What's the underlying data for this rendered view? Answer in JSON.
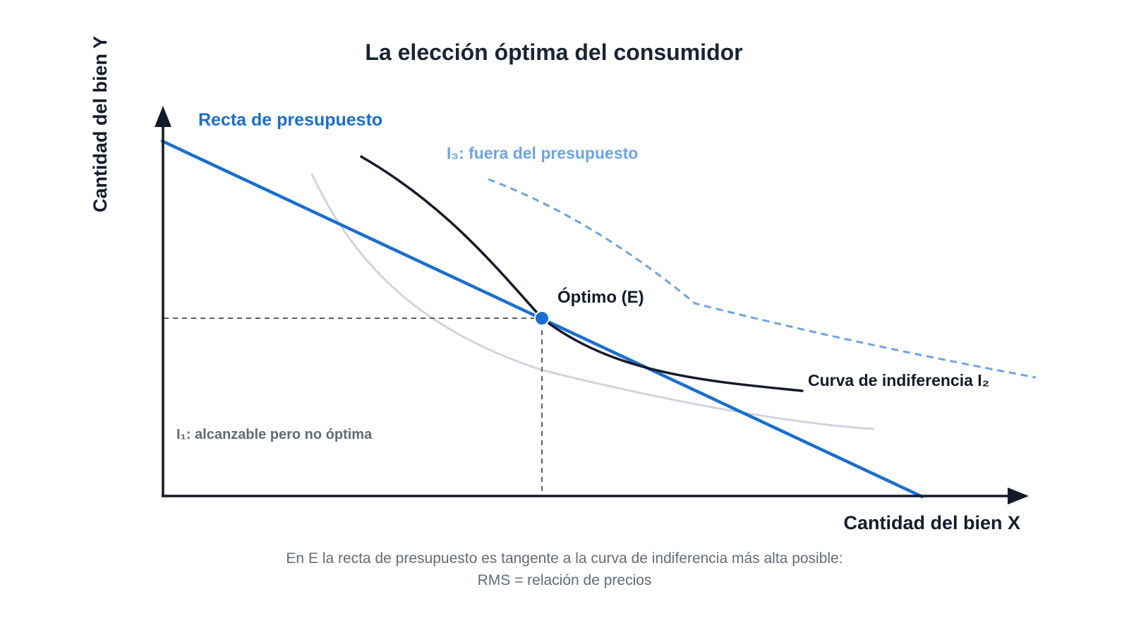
{
  "title": "La elección óptima del consumidor",
  "axes": {
    "x_label": "Cantidad del bien X",
    "y_label": "Cantidad del bien Y"
  },
  "labels": {
    "budget_line": "Recta de presupuesto",
    "i3": "I₃: fuera del presupuesto",
    "i2": "Curva de indiferencia I₂",
    "i1": "I₁: alcanzable pero no óptima",
    "optimum": "Óptimo (E)"
  },
  "caption": {
    "line1": "En E la recta de presupuesto es tangente a la curva de indiferencia más alta posible:",
    "line2": "RMS = relación de precios"
  },
  "colors": {
    "budget_line": "#1a6ecf",
    "i2": "#141a2a",
    "i1": "#cfd5de",
    "i3": "#6ea4e4",
    "optimum_point": "#1a6ecf",
    "guide": "#5a5f68",
    "axis": "#141a2a",
    "i1_label": "#636b77"
  }
}
